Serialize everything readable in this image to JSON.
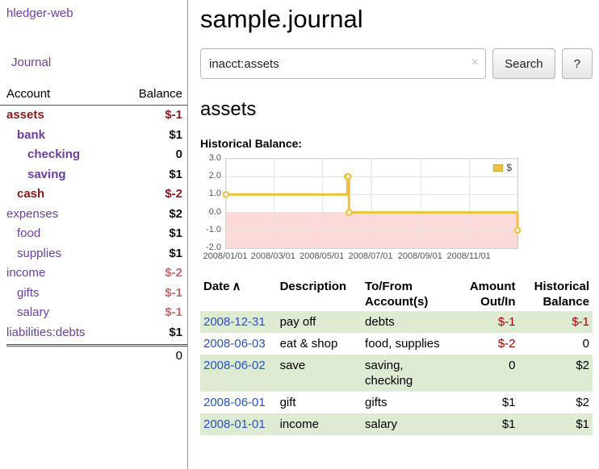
{
  "app": {
    "title": "hledger-web"
  },
  "sidebar": {
    "journal_link": "Journal",
    "accounts": {
      "account_header": "Account",
      "balance_header": "Balance",
      "rows": [
        {
          "name": "assets",
          "balance": "$-1",
          "indent": 0,
          "name_style": "neg",
          "bal_style": "neg"
        },
        {
          "name": "bank",
          "balance": "$1",
          "indent": 1,
          "name_style": "strong",
          "bal_style": "plain"
        },
        {
          "name": "checking",
          "balance": "0",
          "indent": 2,
          "name_style": "strong",
          "bal_style": "plain"
        },
        {
          "name": "saving",
          "balance": "$1",
          "indent": 2,
          "name_style": "strong",
          "bal_style": "plain"
        },
        {
          "name": "cash",
          "balance": "$-2",
          "indent": 1,
          "name_style": "neg",
          "bal_style": "neg"
        },
        {
          "name": "expenses",
          "balance": "$2",
          "indent": 0,
          "name_style": "plain",
          "bal_style": "plain"
        },
        {
          "name": "food",
          "balance": "$1",
          "indent": 1,
          "name_style": "plain",
          "bal_style": "plain"
        },
        {
          "name": "supplies",
          "balance": "$1",
          "indent": 1,
          "name_style": "plain",
          "bal_style": "plain"
        },
        {
          "name": "income",
          "balance": "$-2",
          "indent": 0,
          "name_style": "plain",
          "bal_style": "soft-neg"
        },
        {
          "name": "gifts",
          "balance": "$-1",
          "indent": 1,
          "name_style": "plain",
          "bal_style": "soft-neg"
        },
        {
          "name": "salary",
          "balance": "$-1",
          "indent": 1,
          "name_style": "plain",
          "bal_style": "soft-neg"
        },
        {
          "name": "liabilities:debts",
          "balance": "$1",
          "indent": 0,
          "name_style": "plain",
          "bal_style": "plain"
        }
      ],
      "total": "0"
    }
  },
  "main": {
    "title": "sample.journal",
    "search": {
      "value": "inacct:assets",
      "clear_icon": "×",
      "search_button": "Search",
      "help_button": "?"
    },
    "account_heading": "assets",
    "chart_title": "Historical Balance:"
  },
  "chart_data": {
    "type": "line",
    "title": "Historical Balance",
    "step": true,
    "xlim": [
      "2008/01/01",
      "2008/12/31"
    ],
    "ylim": [
      -2,
      3
    ],
    "x_ticks": [
      "2008/01/01",
      "2008/03/01",
      "2008/05/01",
      "2008/07/01",
      "2008/09/01",
      "2008/11/01"
    ],
    "y_ticks": [
      3.0,
      2.0,
      1.0,
      0.0,
      -1.0,
      -2.0
    ],
    "grid": true,
    "negative_fill": "#fcdada",
    "legend": {
      "label": "$",
      "position": "top-right"
    },
    "series": [
      {
        "name": "$",
        "color": "#edc240",
        "points": [
          {
            "x": "2008/01/01",
            "y": 1
          },
          {
            "x": "2008/06/01",
            "y": 2
          },
          {
            "x": "2008/06/02",
            "y": 2
          },
          {
            "x": "2008/06/03",
            "y": 0
          },
          {
            "x": "2008/12/31",
            "y": -1
          }
        ]
      }
    ]
  },
  "register": {
    "sort_indicator": "∧",
    "headers": {
      "date": {
        "line1": "Date",
        "line2": ""
      },
      "description": {
        "line1": "Description",
        "line2": ""
      },
      "accounts": {
        "line1": "To/From",
        "line2": "Account(s)"
      },
      "amount": {
        "line1": "Amount",
        "line2": "Out/In"
      },
      "balance": {
        "line1": "Historical",
        "line2": "Balance"
      }
    },
    "rows": [
      {
        "date": "2008-12-31",
        "description": "pay off",
        "accounts": "debts",
        "amount": "$-1",
        "balance": "$-1",
        "amount_neg": true,
        "balance_neg": true
      },
      {
        "date": "2008-06-03",
        "description": "eat & shop",
        "accounts": "food, supplies",
        "amount": "$-2",
        "balance": "0",
        "amount_neg": true,
        "balance_neg": false
      },
      {
        "date": "2008-06-02",
        "description": "save",
        "accounts": "saving, checking",
        "amount": "0",
        "balance": "$2",
        "amount_neg": false,
        "balance_neg": false
      },
      {
        "date": "2008-06-01",
        "description": "gift",
        "accounts": "gifts",
        "amount": "$1",
        "balance": "$2",
        "amount_neg": false,
        "balance_neg": false
      },
      {
        "date": "2008-01-01",
        "description": "income",
        "accounts": "salary",
        "amount": "$1",
        "balance": "$1",
        "amount_neg": false,
        "balance_neg": false
      }
    ]
  }
}
